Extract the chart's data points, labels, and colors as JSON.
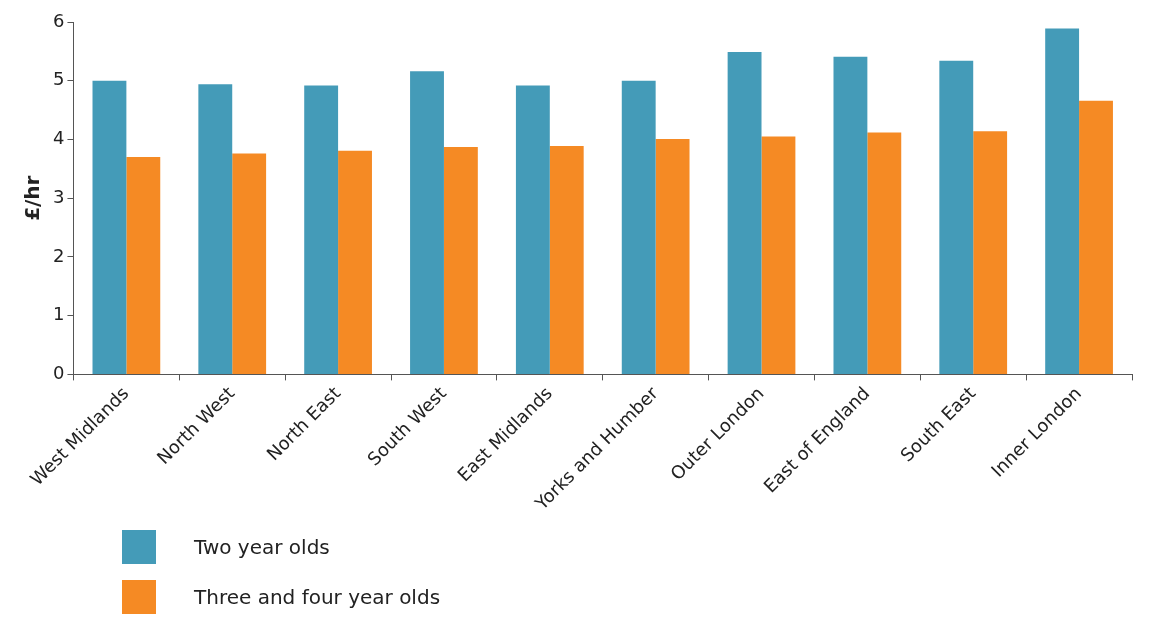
{
  "chart_data": {
    "type": "bar",
    "ylabel": "£/hr",
    "categories": [
      "West Midlands",
      "North West",
      "North East",
      "South West",
      "East Midlands",
      "Yorks and Humber",
      "Outer London",
      "East of England",
      "South East",
      "Inner London"
    ],
    "series": [
      {
        "name": "Two year olds",
        "color": "#449bb8",
        "values": [
          5.0,
          4.94,
          4.92,
          5.16,
          4.92,
          5.0,
          5.49,
          5.41,
          5.34,
          5.89
        ]
      },
      {
        "name": "Three and four year olds",
        "color": "#f58a24",
        "values": [
          3.7,
          3.76,
          3.81,
          3.87,
          3.89,
          4.01,
          4.05,
          4.12,
          4.14,
          4.66
        ]
      }
    ],
    "ylim": [
      0,
      6
    ],
    "yticks": [
      0,
      1,
      2,
      3,
      4,
      5,
      6
    ],
    "grid": false,
    "legend": "bottom"
  }
}
